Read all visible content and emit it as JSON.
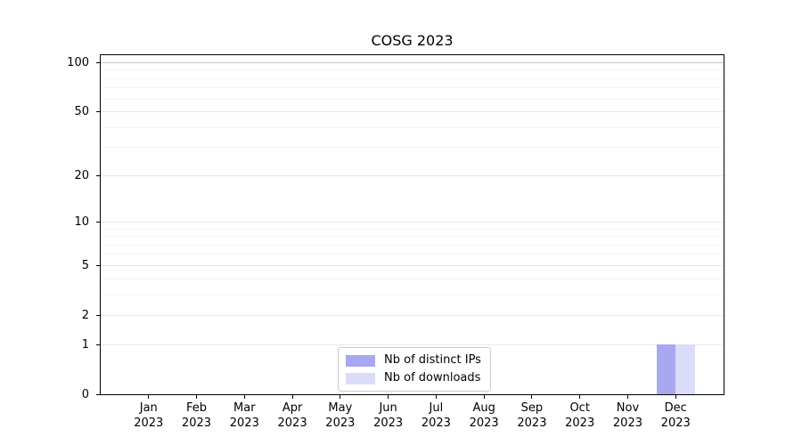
{
  "chart_data": {
    "type": "bar",
    "title": "COSG 2023",
    "categories": [
      "Jan 2023",
      "Feb 2023",
      "Mar 2023",
      "Apr 2023",
      "May 2023",
      "Jun 2023",
      "Jul 2023",
      "Aug 2023",
      "Sep 2023",
      "Oct 2023",
      "Nov 2023",
      "Dec 2023"
    ],
    "series": [
      {
        "name": "Nb of distinct IPs",
        "color": "#a8a8f0",
        "values": [
          0,
          0,
          0,
          0,
          0,
          0,
          0,
          0,
          0,
          0,
          0,
          1
        ]
      },
      {
        "name": "Nb of downloads",
        "color": "#dbdbfa",
        "values": [
          0,
          0,
          0,
          0,
          0,
          0,
          0,
          0,
          0,
          0,
          0,
          1
        ]
      }
    ],
    "xlabel": "",
    "ylabel": "",
    "y_axis": {
      "scale": "log1p",
      "ticks": [
        0,
        1,
        2,
        5,
        10,
        20,
        50,
        100
      ],
      "minor_ticks": [
        3,
        4,
        6,
        7,
        8,
        9,
        30,
        40,
        60,
        70,
        80,
        90
      ],
      "top_value": 111,
      "ylim": [
        0,
        111
      ]
    },
    "grid": true,
    "legend_position": "lower center",
    "colors": {
      "background": "#ffffff",
      "axis": "#000000",
      "grid_major": "#e7e7e7",
      "grid_minor": "#f3f3f3",
      "grid_top_tick": "#c8c8c8",
      "legend_border": "#cccccc"
    }
  }
}
